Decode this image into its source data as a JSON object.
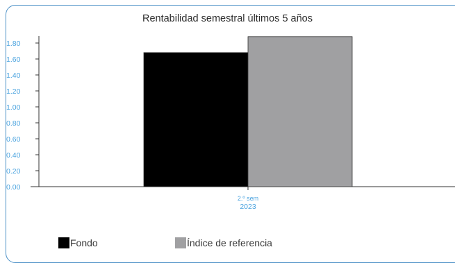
{
  "chart_data": {
    "type": "bar",
    "title": "Rentabilidad semestral últimos 5 años",
    "categories": [
      {
        "line1": "2.º sem",
        "line2": "2023"
      }
    ],
    "series": [
      {
        "name": "Fondo",
        "values": [
          1.68
        ],
        "color": "#000000"
      },
      {
        "name": "Índice de referencia",
        "values": [
          1.88
        ],
        "color": "#a0a0a2"
      }
    ],
    "y_ticks": [
      "0.00",
      "0.20",
      "0.40",
      "0.60",
      "0.80",
      "1.00",
      "1.20",
      "1.40",
      "1.60",
      "1.80"
    ],
    "ylim": [
      0,
      1.9
    ],
    "grid": false,
    "legend_position": "bottom-left",
    "axis_label_color": "#4aa3df"
  }
}
